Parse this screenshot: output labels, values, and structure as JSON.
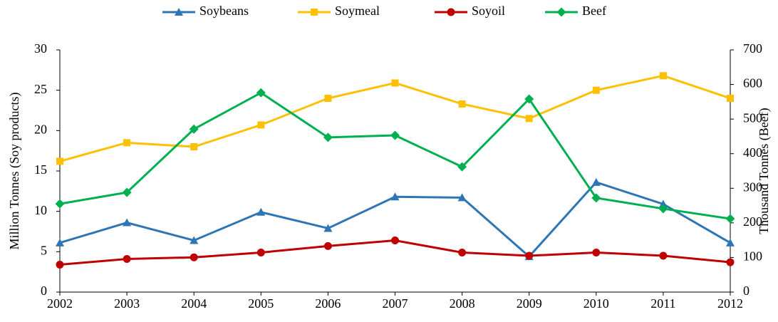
{
  "chart_data": {
    "type": "line",
    "categories": [
      "2002",
      "2003",
      "2004",
      "2005",
      "2006",
      "2007",
      "2008",
      "2009",
      "2010",
      "2011",
      "2012"
    ],
    "y_label": "Million Tonnes (Soy products)",
    "y2_label": "Thousand Tonnes (Beef)",
    "ylim": [
      0,
      30
    ],
    "yticks": [
      0,
      5,
      10,
      15,
      20,
      25,
      30
    ],
    "y2lim": [
      0,
      700
    ],
    "y2ticks": [
      0,
      100,
      200,
      300,
      400,
      500,
      600,
      700
    ],
    "legend": "top",
    "series": [
      {
        "name": "Soybeans",
        "color": "#2E75B6",
        "marker": "triangle",
        "values": [
          6.1,
          8.6,
          6.4,
          9.9,
          7.9,
          11.8,
          11.7,
          4.4,
          13.6,
          10.9,
          6.1
        ]
      },
      {
        "name": "Soymeal",
        "color": "#FFC000",
        "marker": "square",
        "values": [
          16.2,
          18.5,
          18.0,
          20.7,
          24.0,
          25.9,
          23.3,
          21.5,
          25.0,
          26.8,
          24.0
        ]
      },
      {
        "name": "Soyoil",
        "color": "#C00000",
        "marker": "circle",
        "values": [
          3.4,
          4.1,
          4.3,
          4.9,
          5.7,
          6.4,
          4.9,
          4.5,
          4.9,
          4.5,
          3.7
        ]
      },
      {
        "name": "Beef",
        "color": "#00B050",
        "marker": "diamond",
        "axis": "y2",
        "values": [
          255,
          288,
          471,
          576,
          447,
          453,
          362,
          558,
          272,
          241,
          212
        ]
      }
    ]
  }
}
